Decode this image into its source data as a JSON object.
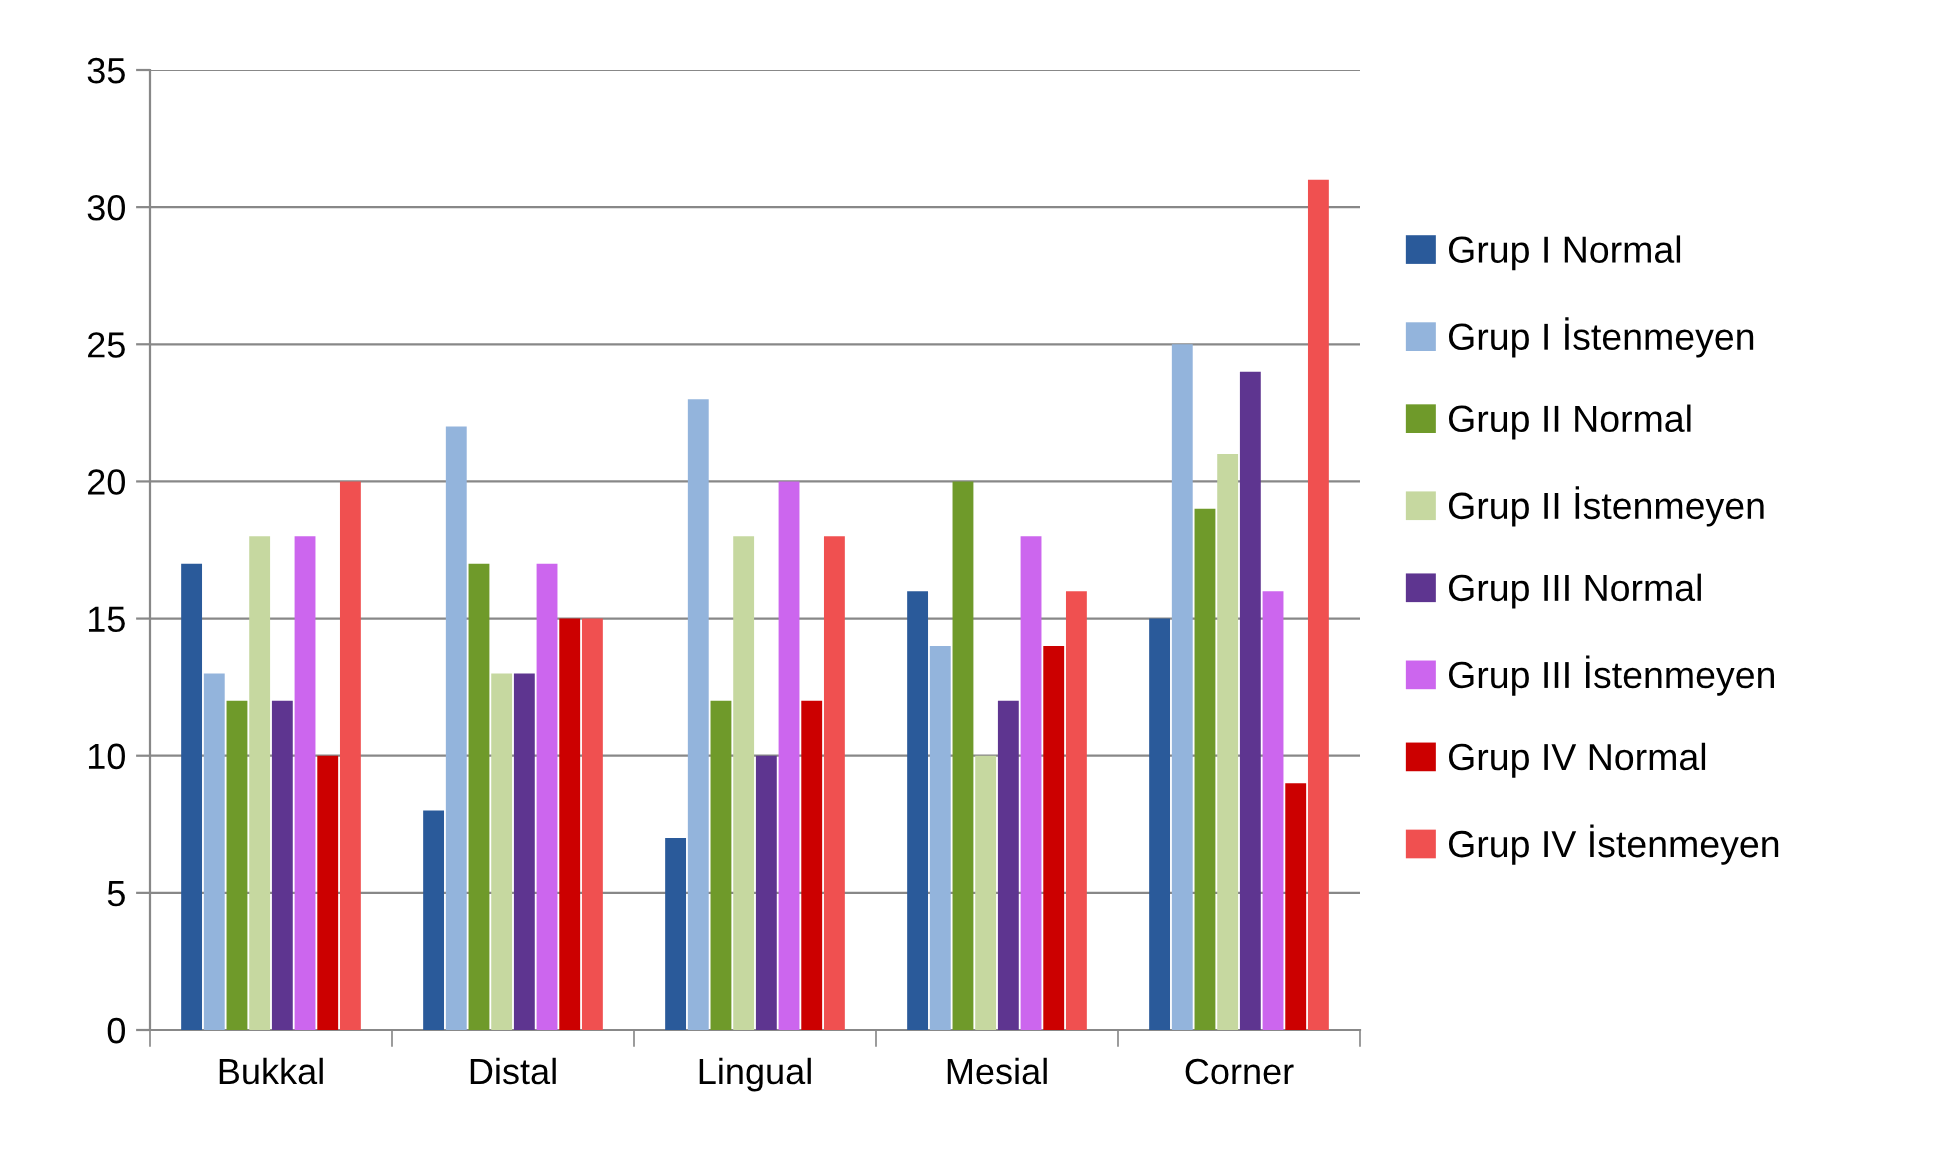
{
  "chart_data": {
    "type": "bar",
    "categories": [
      "Bukkal",
      "Distal",
      "Lingual",
      "Mesial",
      "Corner"
    ],
    "series": [
      {
        "name": "Grup I Normal",
        "color": "#2a5a9a",
        "values": [
          17,
          8,
          7,
          16,
          15
        ]
      },
      {
        "name": "Grup I İstenmeyen",
        "color": "#93b4dc",
        "values": [
          13,
          22,
          23,
          14,
          25
        ]
      },
      {
        "name": "Grup II Normal",
        "color": "#6f9a2a",
        "values": [
          12,
          17,
          12,
          20,
          19
        ]
      },
      {
        "name": "Grup II İstenmeyen",
        "color": "#c6d8a0",
        "values": [
          18,
          13,
          18,
          10,
          21
        ]
      },
      {
        "name": "Grup III Normal",
        "color": "#5e3590",
        "values": [
          12,
          13,
          10,
          12,
          24
        ]
      },
      {
        "name": "Grup III İstenmeyen",
        "color": "#cc66ee",
        "values": [
          18,
          17,
          20,
          18,
          16
        ]
      },
      {
        "name": "Grup IV Normal",
        "color": "#cc0000",
        "values": [
          10,
          15,
          12,
          14,
          9
        ]
      },
      {
        "name": "Grup IV İstenmeyen",
        "color": "#f05050",
        "values": [
          20,
          15,
          18,
          16,
          31
        ]
      }
    ],
    "ylim": [
      0,
      35
    ],
    "yticks": [
      0,
      5,
      10,
      15,
      20,
      25,
      30,
      35
    ],
    "grid": "y",
    "legend": "right"
  }
}
